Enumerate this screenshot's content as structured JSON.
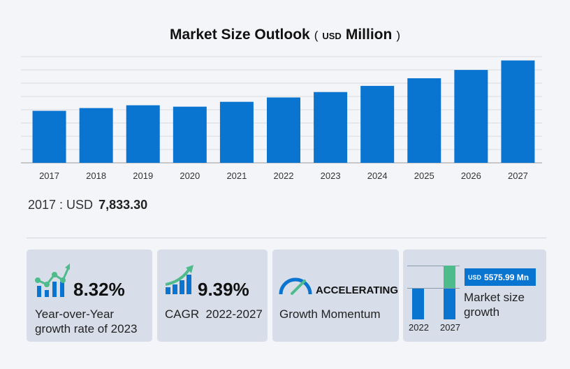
{
  "chart_data": {
    "type": "bar",
    "title": "Market Size Outlook",
    "unit_prefix": "USD",
    "unit": "Million",
    "categories": [
      "2017",
      "2018",
      "2019",
      "2020",
      "2021",
      "2022",
      "2023",
      "2024",
      "2025",
      "2026",
      "2027"
    ],
    "values": [
      7833.3,
      8250,
      8670,
      8460,
      9190,
      9845,
      10664,
      11590,
      12740,
      13990,
      15421
    ],
    "ylim": [
      0,
      16000
    ],
    "grid": true,
    "bar_color": "#0a74d1"
  },
  "readout": {
    "label": "2017 : USD",
    "value": "7,833.30"
  },
  "cards": {
    "yoy": {
      "value": "8.32%",
      "label_line1": "Year-over-Year",
      "label_line2": "growth rate of 2023",
      "icon": "bar-chart-trend-icon"
    },
    "cagr": {
      "value": "9.39%",
      "label": "CAGR  2022-2027",
      "icon": "growth-arrow-icon"
    },
    "momentum": {
      "value": "ACCELERATING",
      "label": "Growth Momentum",
      "icon": "speedometer-icon"
    },
    "growth": {
      "badge_unit": "USD",
      "badge_value": "5575.99 Mn",
      "label_line1": "Market size",
      "label_line2": "growth",
      "year_start": "2022",
      "year_end": "2027",
      "accent": "#4dbb8a"
    }
  }
}
